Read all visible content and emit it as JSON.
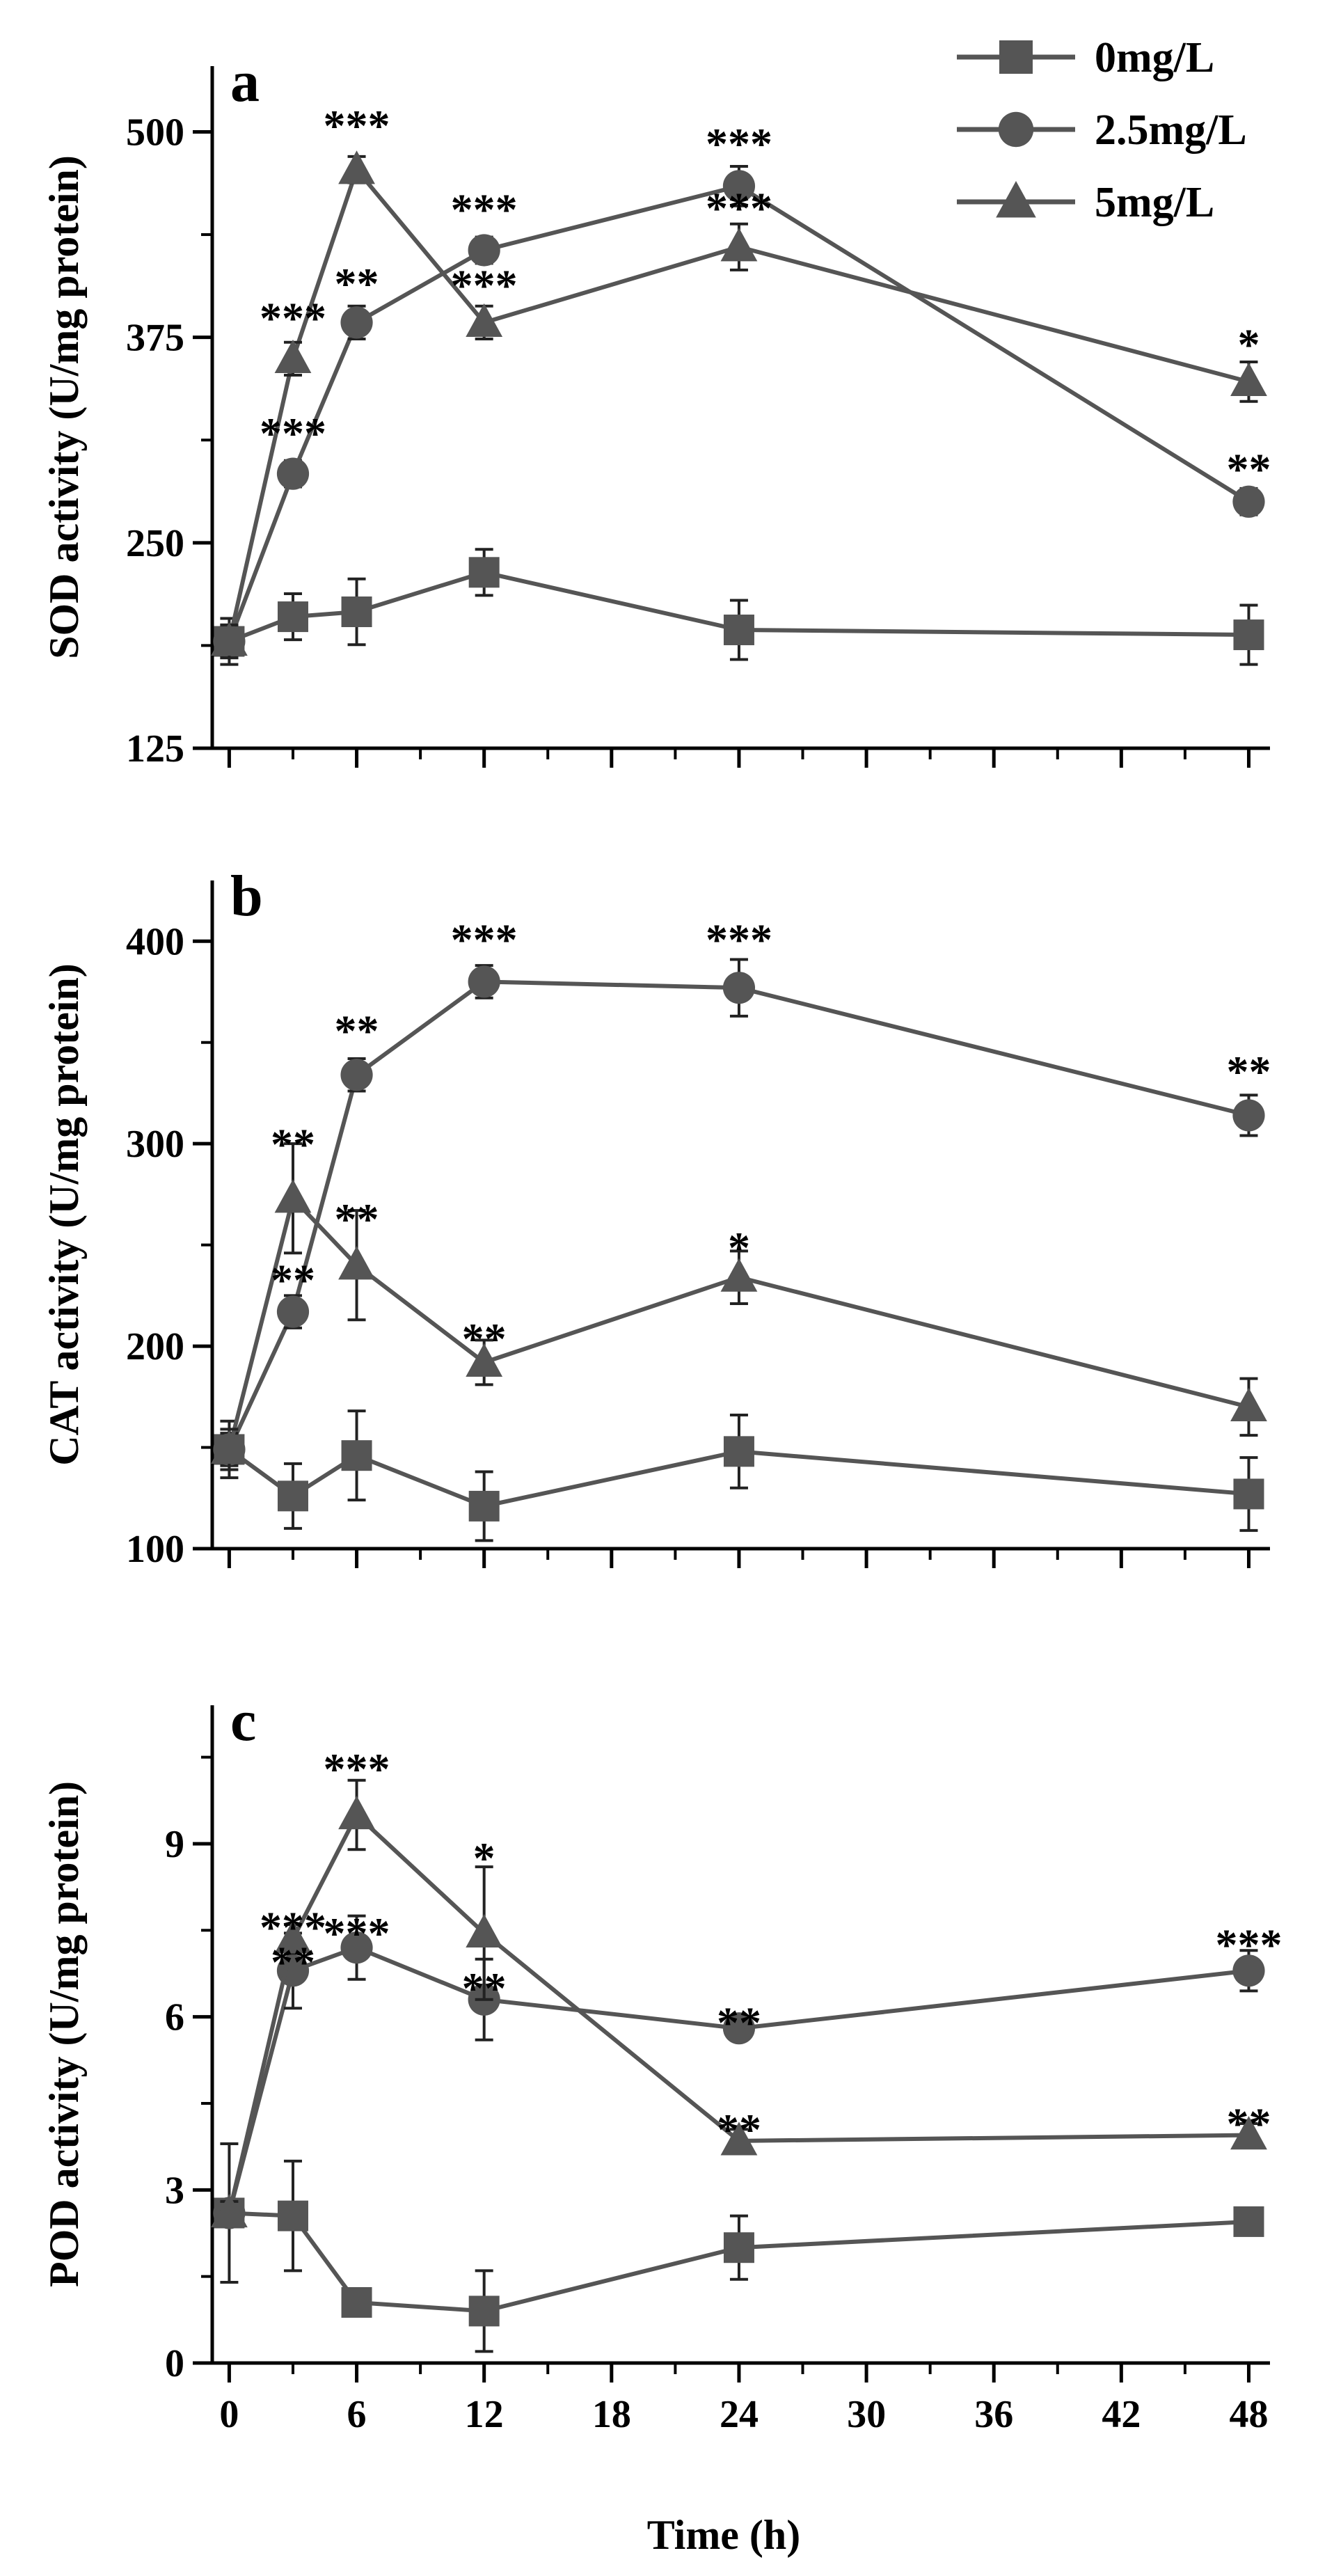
{
  "chart_data": {
    "type": "line",
    "x_title": "Time (h)",
    "x_ticks": [
      0,
      6,
      12,
      18,
      24,
      30,
      36,
      42,
      48
    ],
    "x_range": [
      -0.8,
      49
    ],
    "color": "#555555",
    "legend": [
      {
        "name": "0mg/L",
        "marker": "square"
      },
      {
        "name": "2.5mg/L",
        "marker": "circle"
      },
      {
        "name": "5mg/L",
        "marker": "triangle"
      }
    ],
    "panels": [
      {
        "letter": "a",
        "ylabel": "SOD activity (U/mg protein)",
        "ylim": [
          125,
          540
        ],
        "y_ticks": [
          125,
          250,
          375,
          500
        ],
        "series": [
          {
            "name": "0mg/L",
            "marker": "square",
            "x": [
              0,
              3,
              6,
              12,
              24,
              48
            ],
            "y": [
              190,
              205,
              208,
              232,
              197,
              194
            ],
            "err": [
              14,
              14,
              20,
              14,
              18,
              18
            ]
          },
          {
            "name": "2.5mg/L",
            "marker": "circle",
            "x": [
              0,
              3,
              6,
              12,
              24,
              48
            ],
            "y": [
              190,
              292,
              384,
              428,
              467,
              275
            ],
            "err": [
              10,
              8,
              10,
              8,
              12,
              8
            ]
          },
          {
            "name": "5mg/L",
            "marker": "triangle",
            "x": [
              0,
              3,
              6,
              12,
              24,
              48
            ],
            "y": [
              190,
              362,
              477,
              384,
              430,
              348
            ],
            "err": [
              10,
              10,
              8,
              10,
              14,
              12
            ]
          }
        ],
        "annotations": [
          {
            "x": 3,
            "y": 392,
            "text": "***"
          },
          {
            "x": 3,
            "y": 322,
            "text": "***"
          },
          {
            "x": 6,
            "y": 509,
            "text": "***"
          },
          {
            "x": 6,
            "y": 413,
            "text": "**"
          },
          {
            "x": 12,
            "y": 458,
            "text": "***"
          },
          {
            "x": 12,
            "y": 412,
            "text": "***"
          },
          {
            "x": 24,
            "y": 498,
            "text": "***"
          },
          {
            "x": 24,
            "y": 459,
            "text": "***"
          },
          {
            "x": 48,
            "y": 376,
            "text": "*"
          },
          {
            "x": 48,
            "y": 300,
            "text": "**"
          }
        ]
      },
      {
        "letter": "b",
        "ylabel": "CAT activity (U/mg protein)",
        "ylim": [
          100,
          430
        ],
        "y_ticks": [
          100,
          200,
          300,
          400
        ],
        "series": [
          {
            "name": "0mg/L",
            "marker": "square",
            "x": [
              0,
              3,
              6,
              12,
              24,
              48
            ],
            "y": [
              149,
              126,
              146,
              121,
              148,
              127
            ],
            "err": [
              14,
              16,
              22,
              17,
              18,
              18
            ]
          },
          {
            "name": "2.5mg/L",
            "marker": "circle",
            "x": [
              0,
              3,
              6,
              12,
              24,
              48
            ],
            "y": [
              149,
              217,
              334,
              380,
              377,
              314
            ],
            "err": [
              8,
              8,
              8,
              8,
              14,
              10
            ]
          },
          {
            "name": "5mg/L",
            "marker": "triangle",
            "x": [
              0,
              3,
              6,
              12,
              24,
              48
            ],
            "y": [
              149,
              273,
              240,
              192,
              234,
              170
            ],
            "err": [
              10,
              27,
              27,
              11,
              13,
              14
            ]
          }
        ],
        "annotations": [
          {
            "x": 3,
            "y": 304,
            "text": "**"
          },
          {
            "x": 3,
            "y": 237,
            "text": "**"
          },
          {
            "x": 6,
            "y": 360,
            "text": "**"
          },
          {
            "x": 6,
            "y": 267,
            "text": "**"
          },
          {
            "x": 12,
            "y": 405,
            "text": "***"
          },
          {
            "x": 12,
            "y": 208,
            "text": "**"
          },
          {
            "x": 24,
            "y": 405,
            "text": "***"
          },
          {
            "x": 24,
            "y": 253,
            "text": "*"
          },
          {
            "x": 48,
            "y": 340,
            "text": "**"
          }
        ]
      },
      {
        "letter": "c",
        "ylabel": "POD activity (U/mg protein)",
        "ylim": [
          0,
          11.4
        ],
        "y_ticks": [
          0,
          3,
          6,
          9
        ],
        "series": [
          {
            "name": "0mg/L",
            "marker": "square",
            "x": [
              0,
              3,
              6,
              12,
              24,
              48
            ],
            "y": [
              2.6,
              2.55,
              1.05,
              0.9,
              2.0,
              2.45
            ],
            "err": [
              1.2,
              0.95,
              0.15,
              0.7,
              0.55,
              0.2
            ]
          },
          {
            "name": "2.5mg/L",
            "marker": "circle",
            "x": [
              0,
              3,
              6,
              12,
              24,
              48
            ],
            "y": [
              2.6,
              6.8,
              7.2,
              6.3,
              5.8,
              6.8
            ],
            "err": [
              0.2,
              0.65,
              0.55,
              0.7,
              0.2,
              0.35
            ]
          },
          {
            "name": "5mg/L",
            "marker": "triangle",
            "x": [
              0,
              3,
              6,
              12,
              24,
              48
            ],
            "y": [
              2.6,
              7.35,
              9.5,
              7.45,
              3.85,
              3.95
            ],
            "err": [
              0.2,
              0.25,
              0.6,
              1.15,
              0.2,
              0.2
            ]
          }
        ],
        "annotations": [
          {
            "x": 3,
            "y": 7.7,
            "text": "***"
          },
          {
            "x": 3,
            "y": 7.1,
            "text": "**"
          },
          {
            "x": 6,
            "y": 10.45,
            "text": "***"
          },
          {
            "x": 6,
            "y": 7.6,
            "text": "***"
          },
          {
            "x": 12,
            "y": 8.9,
            "text": "*"
          },
          {
            "x": 12,
            "y": 6.65,
            "text": "**"
          },
          {
            "x": 24,
            "y": 6.05,
            "text": "**"
          },
          {
            "x": 24,
            "y": 4.2,
            "text": "**"
          },
          {
            "x": 48,
            "y": 7.4,
            "text": "***"
          },
          {
            "x": 48,
            "y": 4.3,
            "text": "**"
          }
        ]
      }
    ]
  }
}
